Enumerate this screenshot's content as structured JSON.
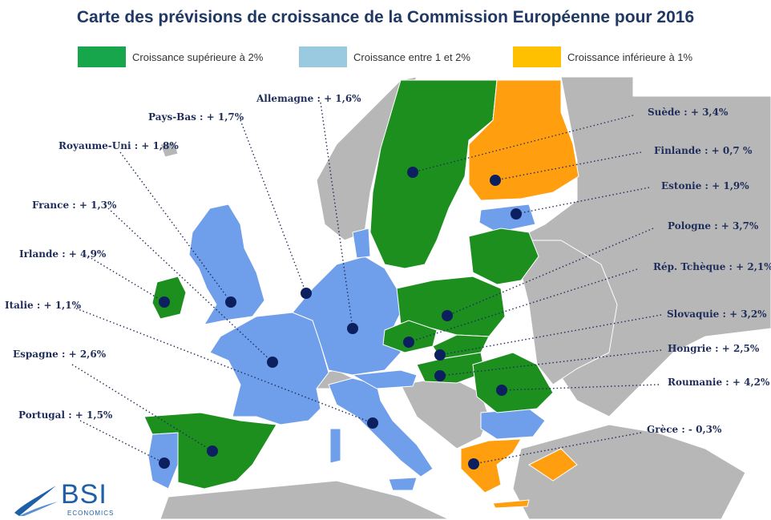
{
  "title": "Carte des prévisions de croissance de la Commission Européenne pour 2016",
  "legend": [
    {
      "label": "Croissance supérieure à 2%",
      "color": "#17a64b"
    },
    {
      "label": "Croissance entre 1 et 2%",
      "color": "#99cadf"
    },
    {
      "label": "Croissance inférieure à 1%",
      "color": "#ffc000"
    }
  ],
  "map_colors": {
    "sea": "#ffffff",
    "non_eu": "#b7b7b7",
    "high": "#1c8f1f",
    "mid": "#6f9eea",
    "low": "#ff9e0f",
    "dot": "#0c1f5e",
    "leader": "#1f2d5a"
  },
  "countries": [
    {
      "id": "allemagne",
      "label": "Allemagne : + 1,6%",
      "growth": 1.6,
      "class": "mid"
    },
    {
      "id": "pays-bas",
      "label": "Pays-Bas : + 1,7%",
      "growth": 1.7,
      "class": "mid"
    },
    {
      "id": "royaume-uni",
      "label": "Royaume-Uni : + 1,8%",
      "growth": 1.8,
      "class": "mid"
    },
    {
      "id": "france",
      "label": "France : + 1,3%",
      "growth": 1.3,
      "class": "mid"
    },
    {
      "id": "irlande",
      "label": "Irlande : + 4,9%",
      "growth": 4.9,
      "class": "high"
    },
    {
      "id": "italie",
      "label": "Italie : + 1,1%",
      "growth": 1.1,
      "class": "mid"
    },
    {
      "id": "espagne",
      "label": "Espagne : + 2,6%",
      "growth": 2.6,
      "class": "high"
    },
    {
      "id": "portugal",
      "label": "Portugal : + 1,5%",
      "growth": 1.5,
      "class": "mid"
    },
    {
      "id": "suede",
      "label": "Suède : + 3,4%",
      "growth": 3.4,
      "class": "high"
    },
    {
      "id": "finlande",
      "label": "Finlande : + 0,7 %",
      "growth": 0.7,
      "class": "low"
    },
    {
      "id": "estonie",
      "label": "Estonie : + 1,9%",
      "growth": 1.9,
      "class": "mid"
    },
    {
      "id": "pologne",
      "label": "Pologne : + 3,7%",
      "growth": 3.7,
      "class": "high"
    },
    {
      "id": "rep-tcheque",
      "label": "Rép. Tchèque : + 2,1%",
      "growth": 2.1,
      "class": "high"
    },
    {
      "id": "slovaquie",
      "label": "Slovaquie : + 3,2%",
      "growth": 3.2,
      "class": "high"
    },
    {
      "id": "hongrie",
      "label": "Hongrie : + 2,5%",
      "growth": 2.5,
      "class": "high"
    },
    {
      "id": "roumanie",
      "label": "Roumanie : + 4,2%",
      "growth": 4.2,
      "class": "high"
    },
    {
      "id": "grece",
      "label": "Grèce : - 0,3%",
      "growth": -0.3,
      "class": "low"
    }
  ],
  "logo": {
    "name": "BSI",
    "sub": "ECONOMICS"
  }
}
